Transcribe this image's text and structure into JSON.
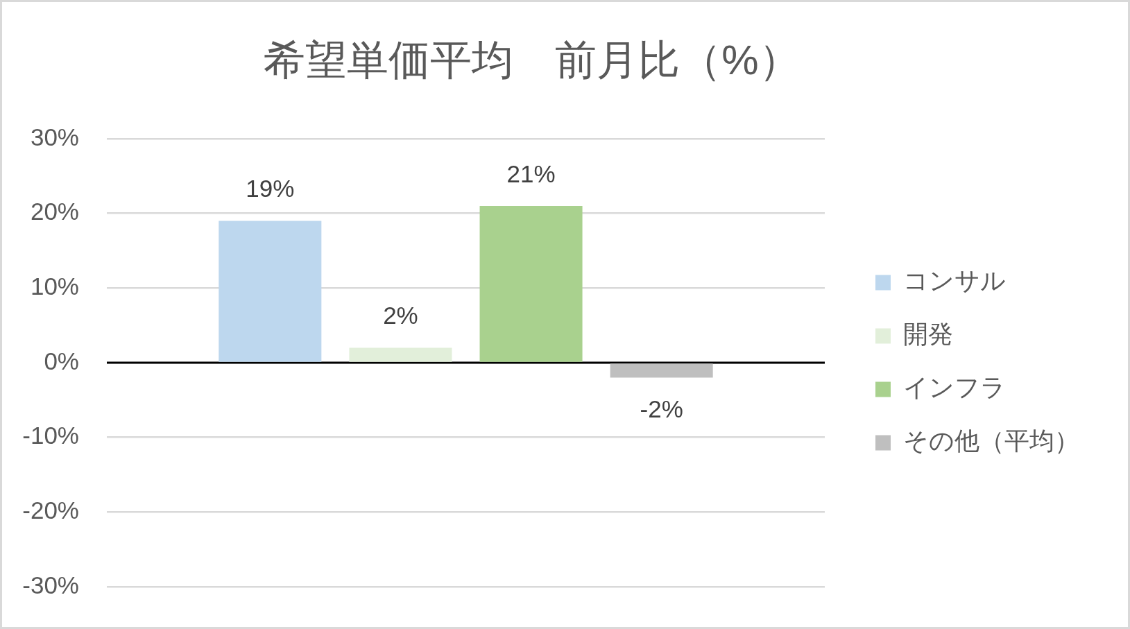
{
  "chart_data": {
    "type": "bar",
    "title": "希望単価平均　前月比（%）",
    "categories": [
      null
    ],
    "series": [
      {
        "name": "コンサル",
        "color": "#bdd7ee",
        "values": [
          19
        ],
        "value_labels": [
          "19%"
        ]
      },
      {
        "name": "開発",
        "color": "#e2efda",
        "values": [
          2
        ],
        "value_labels": [
          "2%"
        ]
      },
      {
        "name": "インフラ",
        "color": "#a9d18e",
        "values": [
          21
        ],
        "value_labels": [
          "21%"
        ]
      },
      {
        "name": "その他（平均）",
        "color": "#bfbfbf",
        "values": [
          -2
        ],
        "value_labels": [
          "-2%"
        ]
      }
    ],
    "ylim": [
      -30,
      30
    ],
    "yticks": [
      {
        "value": -30,
        "label": "-30%"
      },
      {
        "value": -20,
        "label": "-20%"
      },
      {
        "value": -10,
        "label": "-10%"
      },
      {
        "value": 0,
        "label": "0%"
      },
      {
        "value": 10,
        "label": "10%"
      },
      {
        "value": 20,
        "label": "20%"
      },
      {
        "value": 30,
        "label": "30%"
      }
    ],
    "grid": "y",
    "legend": "right"
  }
}
